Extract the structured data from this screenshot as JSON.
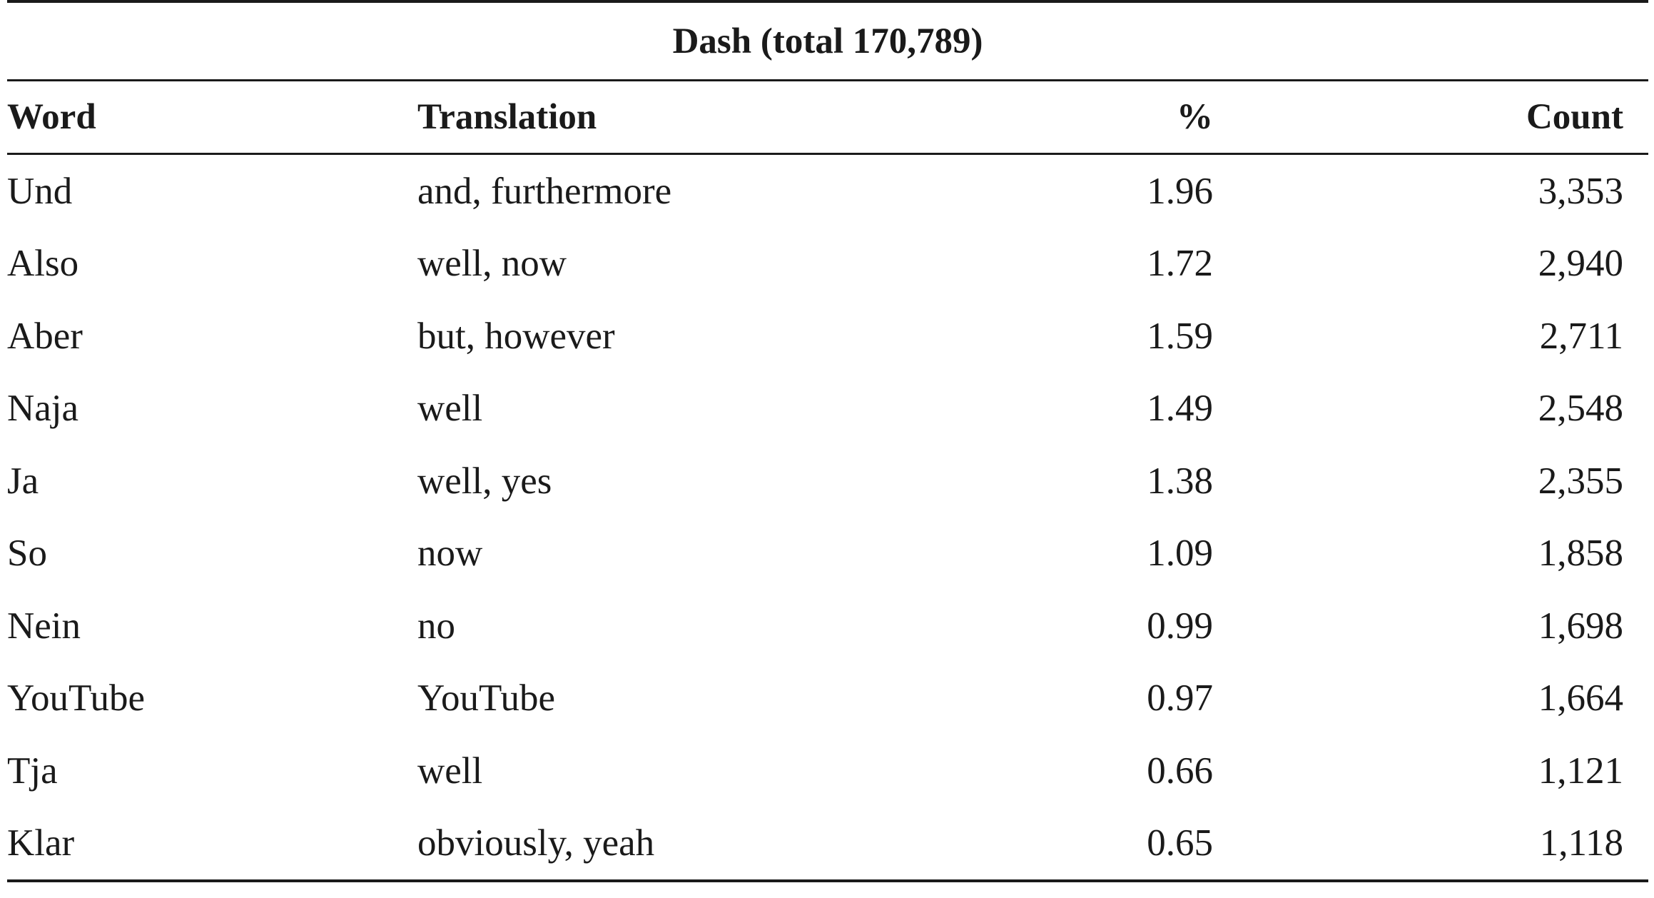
{
  "table": {
    "caption": "Dash (total 170,789)",
    "columns": [
      "Word",
      "Translation",
      "%",
      "Count"
    ],
    "rows": [
      {
        "word": "Und",
        "translation": "and, furthermore",
        "percent": "1.96",
        "count": "3,353"
      },
      {
        "word": "Also",
        "translation": "well, now",
        "percent": "1.72",
        "count": "2,940"
      },
      {
        "word": "Aber",
        "translation": "but, however",
        "percent": "1.59",
        "count": "2,711"
      },
      {
        "word": "Naja",
        "translation": "well",
        "percent": "1.49",
        "count": "2,548"
      },
      {
        "word": "Ja",
        "translation": "well, yes",
        "percent": "1.38",
        "count": "2,355"
      },
      {
        "word": "So",
        "translation": "now",
        "percent": "1.09",
        "count": "1,858"
      },
      {
        "word": "Nein",
        "translation": "no",
        "percent": "0.99",
        "count": "1,698"
      },
      {
        "word": "YouTube",
        "translation": "YouTube",
        "percent": "0.97",
        "count": "1,664"
      },
      {
        "word": "Tja",
        "translation": "well",
        "percent": "0.66",
        "count": "1,121"
      },
      {
        "word": "Klar",
        "translation": "obviously, yeah",
        "percent": "0.65",
        "count": "1,118"
      }
    ]
  }
}
